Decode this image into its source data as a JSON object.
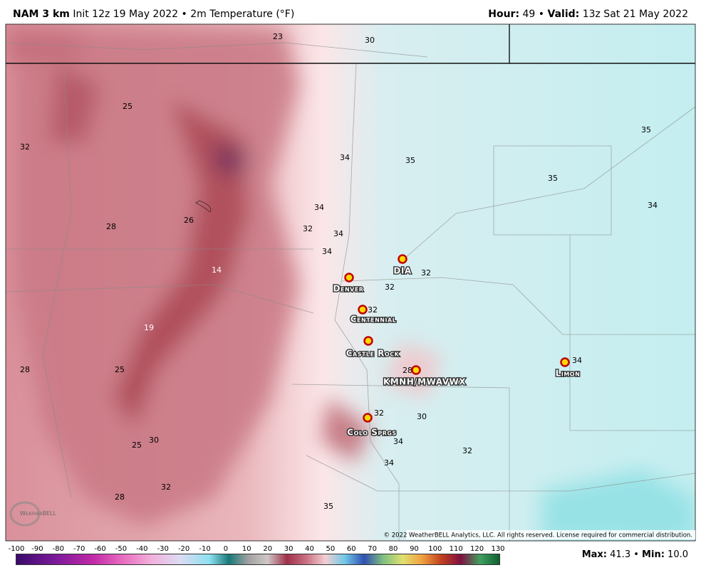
{
  "header": {
    "model": "NAM 3 km",
    "info": "Init 12z 19 May 2022 • 2m Temperature (°F)",
    "hour_label": "Hour:",
    "hour": "49",
    "sep": "•",
    "valid_label": "Valid:",
    "valid": "13z Sat 21 May 2022"
  },
  "map": {
    "temps": [
      23,
      30,
      25,
      32,
      34,
      35,
      35,
      35,
      34,
      34,
      26,
      28,
      32,
      34,
      34,
      14,
      32,
      32,
      32,
      19,
      34,
      28,
      25,
      28,
      32,
      30,
      30,
      25,
      34,
      32,
      34,
      32,
      28,
      35
    ],
    "cities": [
      "DIA",
      "Denver",
      "Centennial",
      "Castle Rock",
      "KMNH/MWAVWX",
      "Limon",
      "Colo Sprgs"
    ],
    "copyright": "© 2022 WeatherBELL Analytics, LLC. All rights reserved. License required for commercial distribution.",
    "logo": "WeatherBELL"
  },
  "colorbar": {
    "ticks": [
      -100,
      -90,
      -80,
      -70,
      -60,
      -50,
      -40,
      -30,
      -20,
      -10,
      0,
      10,
      20,
      30,
      40,
      50,
      60,
      70,
      80,
      90,
      100,
      110,
      120,
      130
    ]
  },
  "footer": {
    "max_label": "Max:",
    "max": "41.3",
    "sep": "•",
    "min_label": "Min:",
    "min": "10.0"
  }
}
